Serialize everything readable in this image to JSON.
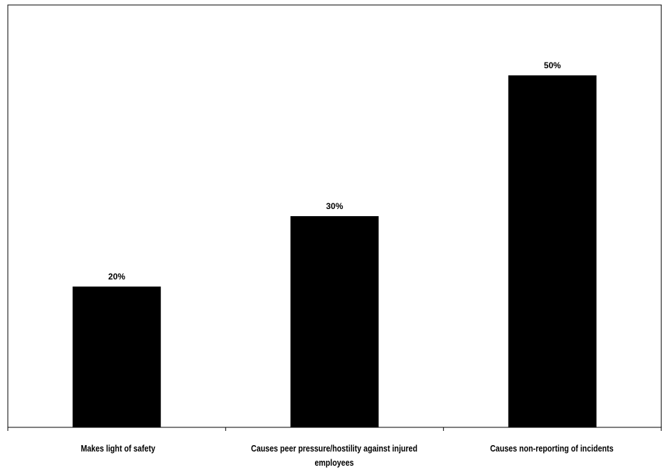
{
  "chart_data": {
    "type": "bar",
    "categories": [
      "Makes light of safety",
      "Causes peer pressure/hostility against injured employees",
      "Causes non-reporting of incidents"
    ],
    "values": [
      20,
      30,
      50
    ],
    "data_labels": [
      "20%",
      "30%",
      "50%"
    ],
    "value_unit": "%",
    "ylim": [
      0,
      60
    ],
    "grid": false,
    "bar_color": "#000000"
  }
}
